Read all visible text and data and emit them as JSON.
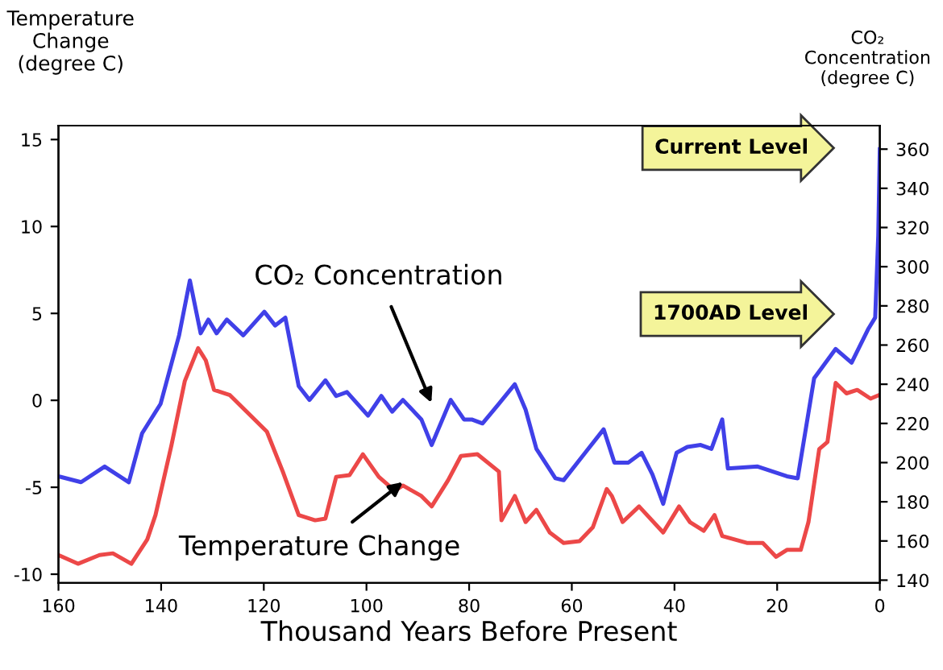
{
  "chart_data": {
    "type": "line",
    "xlabel": "Thousand Years Before Present",
    "ylabel": "Temperature\nChange\n(degree C)",
    "y2label": "CO₂\nConcentration\n(degree C)",
    "xlim": [
      160,
      0
    ],
    "xticks": [
      160,
      140,
      120,
      100,
      80,
      60,
      40,
      20,
      0
    ],
    "ylim": [
      -10.5,
      15.8
    ],
    "yticks": [
      -10,
      -5,
      0,
      5,
      10,
      15
    ],
    "y2lim": [
      138.6,
      372
    ],
    "y2ticks": [
      140,
      160,
      180,
      200,
      220,
      240,
      260,
      280,
      300,
      320,
      340,
      360
    ],
    "grid": false,
    "legend": false,
    "marker": "none",
    "line_style": "solid",
    "series": [
      {
        "color": "#4040e8",
        "axis": "y2",
        "x": [
          160,
          155.6,
          151,
          146.3,
          143.7,
          140.1,
          136.5,
          134.4,
          132.3,
          130.8,
          129.2,
          127.2,
          124,
          119.9,
          117.8,
          115.8,
          113.2,
          111.1,
          108,
          105.9,
          103.8,
          99.7,
          97.1,
          95,
          92.9,
          89.3,
          87.3,
          83.6,
          81,
          79.5,
          77.4,
          74.2,
          71.1,
          69,
          66.9,
          63.2,
          61.6,
          57.4,
          53.8,
          51.7,
          49,
          46.4,
          44.3,
          42.2,
          39.6,
          37.5,
          34.9,
          32.8,
          30.7,
          29.6,
          23.8,
          18.1,
          16,
          12.8,
          8.6,
          5.5,
          2.3,
          0.9,
          0.3,
          0
        ],
        "values": [
          193,
          190,
          198,
          190,
          215,
          230,
          265,
          293,
          266,
          273,
          266,
          273,
          265,
          277,
          270,
          274,
          239,
          232,
          242,
          234,
          236,
          224,
          234,
          226,
          232,
          222,
          209,
          232,
          222,
          222,
          220,
          230,
          240,
          227,
          207,
          192,
          191,
          205,
          217,
          200,
          200,
          205,
          194,
          179,
          205,
          208,
          209,
          207,
          222,
          197,
          198,
          193,
          192,
          243,
          258,
          251,
          268,
          274,
          316,
          360
        ]
      },
      {
        "color": "#ec4848",
        "x": [
          160,
          156.2,
          152,
          149.4,
          145.8,
          142.7,
          141.1,
          138,
          135.4,
          132.8,
          131.3,
          129.7,
          126.6,
          122.5,
          119.4,
          116.3,
          113.2,
          110,
          108,
          105.9,
          103.3,
          100.7,
          97.6,
          94.5,
          92.9,
          89.3,
          87.3,
          84.1,
          81.6,
          78.4,
          74.2,
          73.7,
          71.1,
          69,
          66.9,
          64.3,
          61.6,
          58.5,
          55.9,
          53.2,
          52.2,
          50.1,
          46.9,
          42.2,
          39.1,
          37,
          34.3,
          32.2,
          30.7,
          25.9,
          22.8,
          20.2,
          18.1,
          15.4,
          13.9,
          11.8,
          10.2,
          8.6,
          6.5,
          4.4,
          1.8,
          0.2
        ],
        "values": [
          -8.9,
          -9.4,
          -8.9,
          -8.8,
          -9.4,
          -8.0,
          -6.6,
          -2.6,
          1.1,
          3.0,
          2.3,
          0.6,
          0.3,
          -0.9,
          -1.8,
          -4.1,
          -6.6,
          -6.9,
          -6.8,
          -4.4,
          -4.3,
          -3.1,
          -4.4,
          -5.2,
          -4.9,
          -5.5,
          -6.1,
          -4.6,
          -3.2,
          -3.1,
          -4.1,
          -6.9,
          -5.5,
          -7.0,
          -6.3,
          -7.6,
          -8.2,
          -8.1,
          -7.3,
          -5.1,
          -5.5,
          -7.0,
          -6.1,
          -7.6,
          -6.1,
          -7.0,
          -7.5,
          -6.6,
          -7.8,
          -8.2,
          -8.2,
          -9.0,
          -8.6,
          -8.6,
          -7.0,
          -2.8,
          -2.4,
          1.0,
          0.4,
          0.6,
          0.1,
          0.3
        ]
      }
    ],
    "annotations": [
      "CO₂ Concentration",
      {
        "text": "Temperature Change",
        "x": 92.9,
        "y": -4.7
      },
      "Current Level",
      "1700AD Level"
    ]
  }
}
